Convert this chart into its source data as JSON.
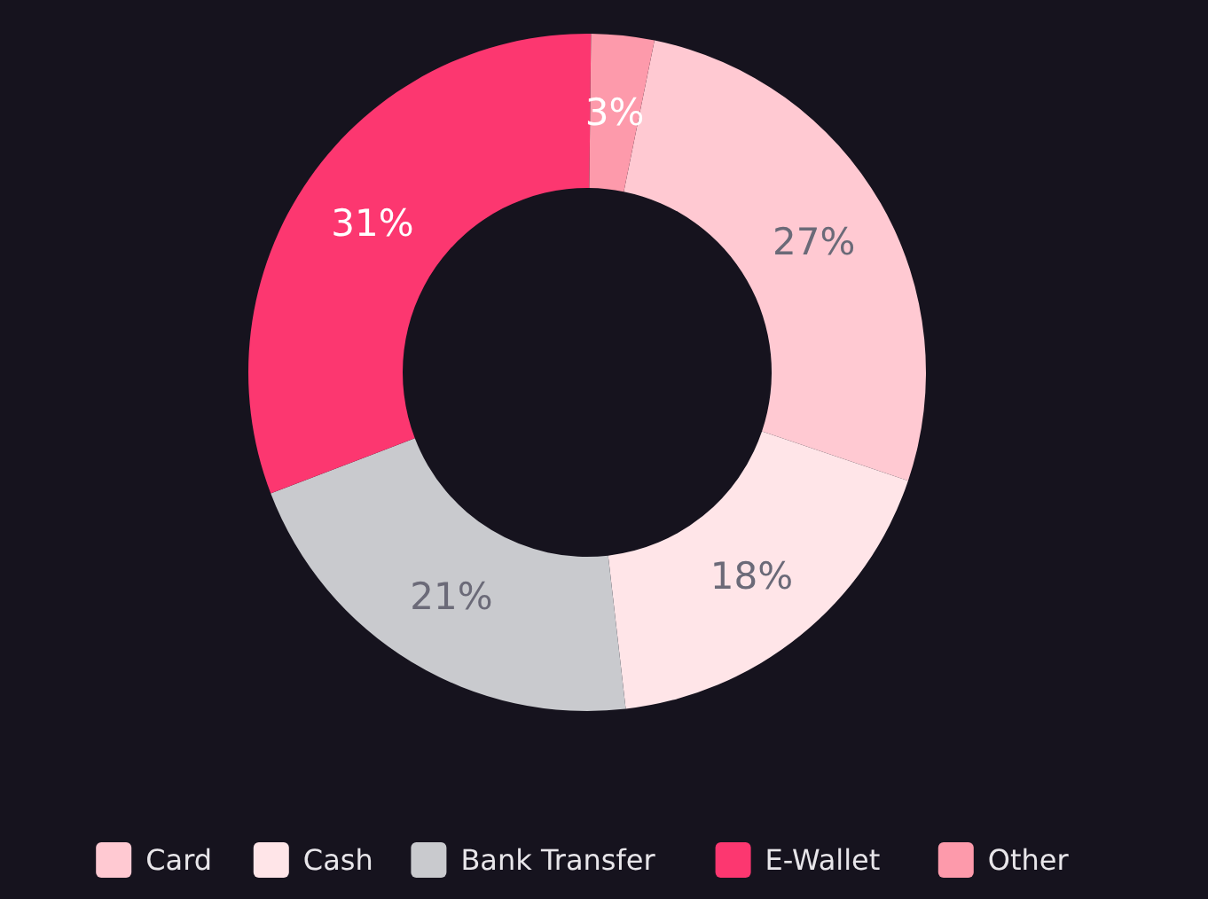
{
  "chart_data": {
    "type": "donut",
    "categories": [
      "Card",
      "Cash",
      "Bank Transfer",
      "E-Wallet",
      "Other"
    ],
    "values": [
      27,
      18,
      21,
      31,
      3
    ],
    "colors": [
      "#ffc9d2",
      "#ffe5e8",
      "#c9cace",
      "#fc3770",
      "#fd9aab"
    ],
    "value_labels": [
      "27%",
      "18%",
      "21%",
      "31%",
      "3%"
    ],
    "legend": "bottom"
  }
}
